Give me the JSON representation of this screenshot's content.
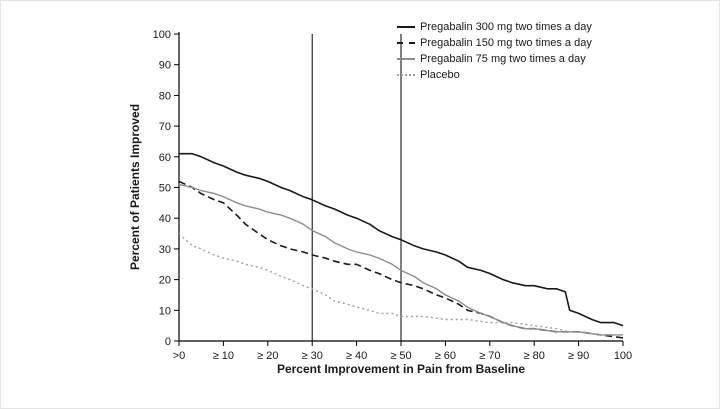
{
  "chart_data": {
    "type": "line",
    "title": "",
    "xlabel": "Percent Improvement in Pain from Baseline",
    "ylabel": "Percent of Patients Improved",
    "xlim": [
      0,
      100
    ],
    "ylim": [
      0,
      100
    ],
    "grid": false,
    "legend_position": "top-right",
    "x_tick_values": [
      0,
      10,
      20,
      30,
      40,
      50,
      60,
      70,
      80,
      90,
      100
    ],
    "x_tick_labels": [
      ">0",
      "≥ 10",
      "≥ 20",
      "≥ 30",
      "≥ 40",
      "≥ 50",
      "≥ 60",
      "≥ 70",
      "≥ 80",
      "≥ 90",
      "100"
    ],
    "y_tick_values": [
      0,
      10,
      20,
      30,
      40,
      50,
      60,
      70,
      80,
      90,
      100
    ],
    "reference_lines_x": [
      30,
      50
    ],
    "axis_color": "#000000",
    "series": [
      {
        "name": "Pregabalin 300 mg two times a day",
        "color": "#1a1a1a",
        "dash": "",
        "width": 1.6,
        "points": [
          [
            0,
            61
          ],
          [
            3,
            61
          ],
          [
            5,
            60
          ],
          [
            8,
            58
          ],
          [
            10,
            57
          ],
          [
            13,
            55
          ],
          [
            15,
            54
          ],
          [
            18,
            53
          ],
          [
            20,
            52
          ],
          [
            23,
            50
          ],
          [
            25,
            49
          ],
          [
            28,
            47
          ],
          [
            30,
            46
          ],
          [
            33,
            44
          ],
          [
            35,
            43
          ],
          [
            38,
            41
          ],
          [
            40,
            40
          ],
          [
            43,
            38
          ],
          [
            45,
            36
          ],
          [
            48,
            34
          ],
          [
            50,
            33
          ],
          [
            53,
            31
          ],
          [
            55,
            30
          ],
          [
            58,
            29
          ],
          [
            60,
            28
          ],
          [
            63,
            26
          ],
          [
            65,
            24
          ],
          [
            68,
            23
          ],
          [
            70,
            22
          ],
          [
            73,
            20
          ],
          [
            75,
            19
          ],
          [
            78,
            18
          ],
          [
            80,
            18
          ],
          [
            83,
            17
          ],
          [
            85,
            17
          ],
          [
            87,
            16
          ],
          [
            88,
            10
          ],
          [
            90,
            9
          ],
          [
            93,
            7
          ],
          [
            95,
            6
          ],
          [
            98,
            6
          ],
          [
            100,
            5
          ]
        ]
      },
      {
        "name": "Pregabalin 150 mg two times a day",
        "color": "#1a1a1a",
        "dash": "7,4",
        "width": 1.6,
        "points": [
          [
            0,
            52
          ],
          [
            3,
            50
          ],
          [
            5,
            48
          ],
          [
            8,
            46
          ],
          [
            10,
            45
          ],
          [
            13,
            41
          ],
          [
            15,
            38
          ],
          [
            18,
            35
          ],
          [
            20,
            33
          ],
          [
            23,
            31
          ],
          [
            25,
            30
          ],
          [
            28,
            29
          ],
          [
            30,
            28
          ],
          [
            33,
            27
          ],
          [
            35,
            26
          ],
          [
            38,
            25
          ],
          [
            40,
            25
          ],
          [
            43,
            23
          ],
          [
            45,
            22
          ],
          [
            48,
            20
          ],
          [
            50,
            19
          ],
          [
            53,
            18
          ],
          [
            55,
            17
          ],
          [
            58,
            15
          ],
          [
            60,
            14
          ],
          [
            63,
            12
          ],
          [
            65,
            10
          ],
          [
            68,
            9
          ],
          [
            70,
            8
          ],
          [
            73,
            6
          ],
          [
            75,
            5
          ],
          [
            78,
            4
          ],
          [
            80,
            4
          ],
          [
            85,
            3
          ],
          [
            90,
            3
          ],
          [
            95,
            2
          ],
          [
            100,
            1
          ]
        ]
      },
      {
        "name": "Pregabalin 75 mg two times a day",
        "color": "#8c8c8c",
        "dash": "",
        "width": 1.4,
        "points": [
          [
            0,
            51
          ],
          [
            3,
            50
          ],
          [
            5,
            49
          ],
          [
            8,
            48
          ],
          [
            10,
            47
          ],
          [
            13,
            45
          ],
          [
            15,
            44
          ],
          [
            18,
            43
          ],
          [
            20,
            42
          ],
          [
            23,
            41
          ],
          [
            25,
            40
          ],
          [
            28,
            38
          ],
          [
            30,
            36
          ],
          [
            33,
            34
          ],
          [
            35,
            32
          ],
          [
            38,
            30
          ],
          [
            40,
            29
          ],
          [
            43,
            28
          ],
          [
            45,
            27
          ],
          [
            48,
            25
          ],
          [
            50,
            23
          ],
          [
            53,
            21
          ],
          [
            55,
            19
          ],
          [
            58,
            17
          ],
          [
            60,
            15
          ],
          [
            63,
            13
          ],
          [
            65,
            11
          ],
          [
            68,
            9
          ],
          [
            70,
            8
          ],
          [
            73,
            6
          ],
          [
            75,
            5
          ],
          [
            78,
            4
          ],
          [
            80,
            4
          ],
          [
            85,
            3
          ],
          [
            90,
            3
          ],
          [
            95,
            2
          ],
          [
            100,
            2
          ]
        ]
      },
      {
        "name": "Placebo",
        "color": "#9e9e9e",
        "dash": "2,3",
        "width": 1.4,
        "points": [
          [
            0,
            35
          ],
          [
            3,
            31
          ],
          [
            5,
            30
          ],
          [
            8,
            28
          ],
          [
            10,
            27
          ],
          [
            13,
            26
          ],
          [
            15,
            25
          ],
          [
            18,
            24
          ],
          [
            20,
            23
          ],
          [
            23,
            21
          ],
          [
            25,
            20
          ],
          [
            28,
            18
          ],
          [
            30,
            17
          ],
          [
            33,
            15
          ],
          [
            35,
            13
          ],
          [
            38,
            12
          ],
          [
            40,
            11
          ],
          [
            43,
            10
          ],
          [
            45,
            9
          ],
          [
            48,
            9
          ],
          [
            50,
            8
          ],
          [
            55,
            8
          ],
          [
            60,
            7
          ],
          [
            65,
            7
          ],
          [
            70,
            6
          ],
          [
            75,
            6
          ],
          [
            80,
            5
          ],
          [
            85,
            4
          ],
          [
            88,
            3
          ],
          [
            90,
            3
          ],
          [
            95,
            2
          ],
          [
            100,
            2
          ]
        ]
      }
    ]
  }
}
